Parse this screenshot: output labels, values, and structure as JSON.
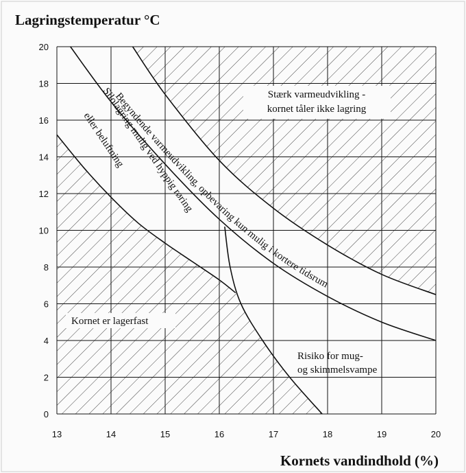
{
  "chart_data": {
    "type": "line",
    "title": "Lagringstemperatur °C",
    "x_label": "Kornets vandindhold (%)",
    "xlim": [
      13,
      20
    ],
    "xticks": [
      13,
      14,
      15,
      16,
      17,
      18,
      19,
      20
    ],
    "ylim": [
      0,
      20
    ],
    "yticks": [
      0,
      2,
      4,
      6,
      8,
      10,
      12,
      14,
      16,
      18,
      20
    ],
    "grid": true,
    "series": [
      {
        "color": "#111111",
        "x": [
          13,
          13.5,
          14,
          14.5,
          15,
          15.5,
          16,
          16.3
        ],
        "values": [
          15.2,
          13.4,
          11.8,
          10.4,
          9.3,
          8.3,
          7.3,
          6.6
        ]
      },
      {
        "color": "#111111",
        "x": [
          13.25,
          14,
          15,
          16,
          17,
          18,
          19,
          20
        ],
        "values": [
          20,
          17,
          13.6,
          10.6,
          8.2,
          6.4,
          5,
          4
        ]
      },
      {
        "color": "#111111",
        "x": [
          14.4,
          15,
          16,
          17,
          18,
          19,
          20
        ],
        "values": [
          20,
          17.4,
          13.8,
          11.2,
          9.2,
          7.6,
          6.5
        ]
      },
      {
        "color": "#111111",
        "x": [
          16.1,
          16.2,
          16.4,
          16.8,
          17.3,
          17.9
        ],
        "values": [
          10.2,
          8,
          6,
          4,
          2,
          0
        ]
      }
    ],
    "annotations": [
      "Stærk varmeudvikling -",
      "kornet tåler ikke lagring",
      "Begyndende varmeudvikling, opbevaring kun mulig i kortere tidsrum",
      "Silolagring mulig ved hyppig røring",
      "eller beluftning",
      "Kornet er lagerfast",
      "Risiko for mug-",
      "og skimmelsvampe"
    ]
  }
}
